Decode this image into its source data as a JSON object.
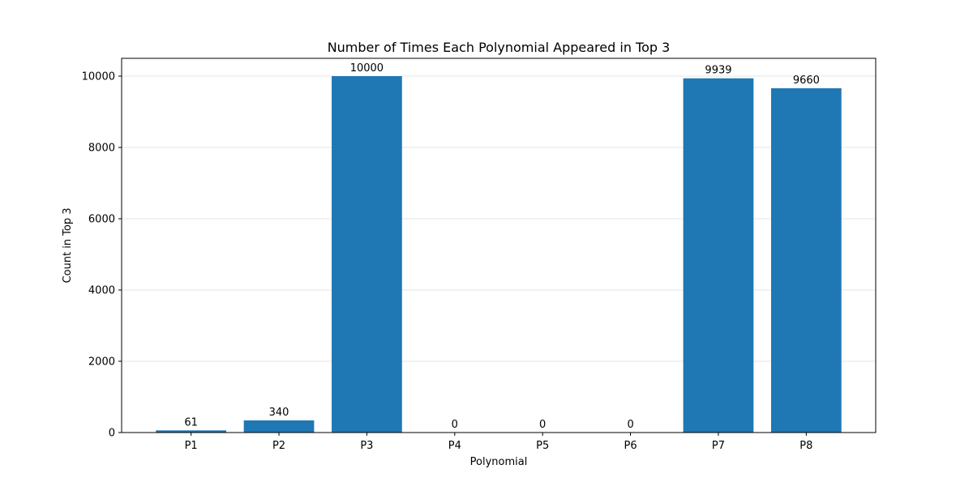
{
  "chart_data": {
    "type": "bar",
    "title": "Number of Times Each Polynomial Appeared in Top 3",
    "xlabel": "Polynomial",
    "ylabel": "Count in Top 3",
    "categories": [
      "P1",
      "P2",
      "P3",
      "P4",
      "P5",
      "P6",
      "P7",
      "P8"
    ],
    "values": [
      61,
      340,
      10000,
      0,
      0,
      0,
      9939,
      9660
    ],
    "value_labels": [
      "61",
      "340",
      "10000",
      "0",
      "0",
      "0",
      "9939",
      "9660"
    ],
    "ylim": [
      0,
      10500
    ],
    "yticks": [
      0,
      2000,
      4000,
      6000,
      8000,
      10000
    ],
    "ytick_labels": [
      "0",
      "2000",
      "4000",
      "6000",
      "8000",
      "10000"
    ],
    "grid": "y-axis",
    "bar_color": "#1f77b4",
    "grid_color": "#e6e6e6"
  }
}
